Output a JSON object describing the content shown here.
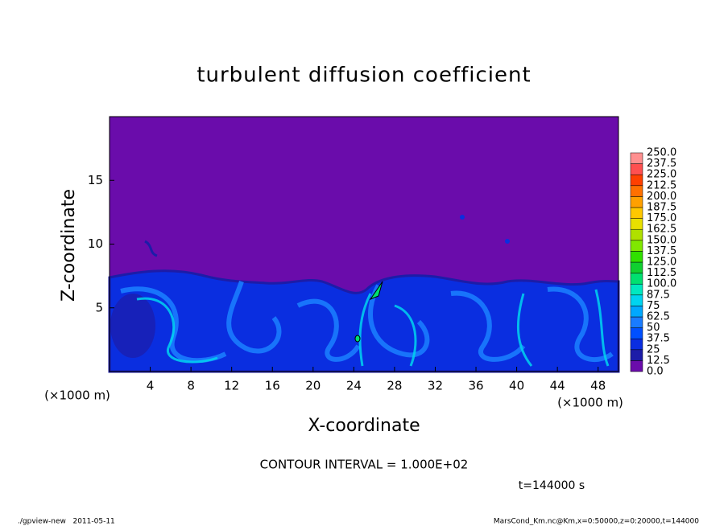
{
  "chart_data": {
    "type": "contour",
    "title": "turbulent diffusion coefficient",
    "xlabel": "X-coordinate",
    "ylabel": "Z-coordinate",
    "x_unit_label": "(×1000 m)",
    "y_unit_label": "(×1000 m)",
    "xlim": [
      0,
      50
    ],
    "ylim": [
      0,
      20
    ],
    "xticks": [
      4,
      8,
      12,
      16,
      20,
      24,
      28,
      32,
      36,
      40,
      44,
      48
    ],
    "yticks": [
      5,
      10,
      15
    ],
    "colorbar": {
      "levels": [
        {
          "value": 0,
          "label": "0.0"
        },
        12.5,
        25,
        37.5,
        50,
        62.5,
        75,
        87.5,
        {
          "value": 100,
          "label": "100.0"
        },
        112.5,
        {
          "value": 125,
          "label": "125.0"
        },
        137.5,
        {
          "value": 150,
          "label": "150.0"
        },
        162.5,
        {
          "value": 175,
          "label": "175.0"
        },
        187.5,
        {
          "value": 200,
          "label": "200.0"
        },
        212.5,
        {
          "value": 225,
          "label": "225.0"
        },
        237.5,
        {
          "value": 250,
          "label": "250.0"
        }
      ],
      "colors": [
        "#6a0cab",
        "#1c1ca8",
        "#0a2ee0",
        "#0050ff",
        "#1a7cff",
        "#00a8ff",
        "#00d4f0",
        "#00e8c0",
        "#00e070",
        "#10d030",
        "#30e000",
        "#80e800",
        "#b0e000",
        "#e8e000",
        "#ffc800",
        "#ffa000",
        "#ff7000",
        "#ff4000",
        "#ff5050",
        "#ff9090"
      ]
    },
    "contour_interval": "CONTOUR INTERVAL = 1.000E+02",
    "time_label": "t=144000 s",
    "footer_left": "./gpview-new   2011-05-11",
    "footer_right": "MarsCond_Km.nc@Km,x=0:50000,z=0:20000,t=144000"
  }
}
